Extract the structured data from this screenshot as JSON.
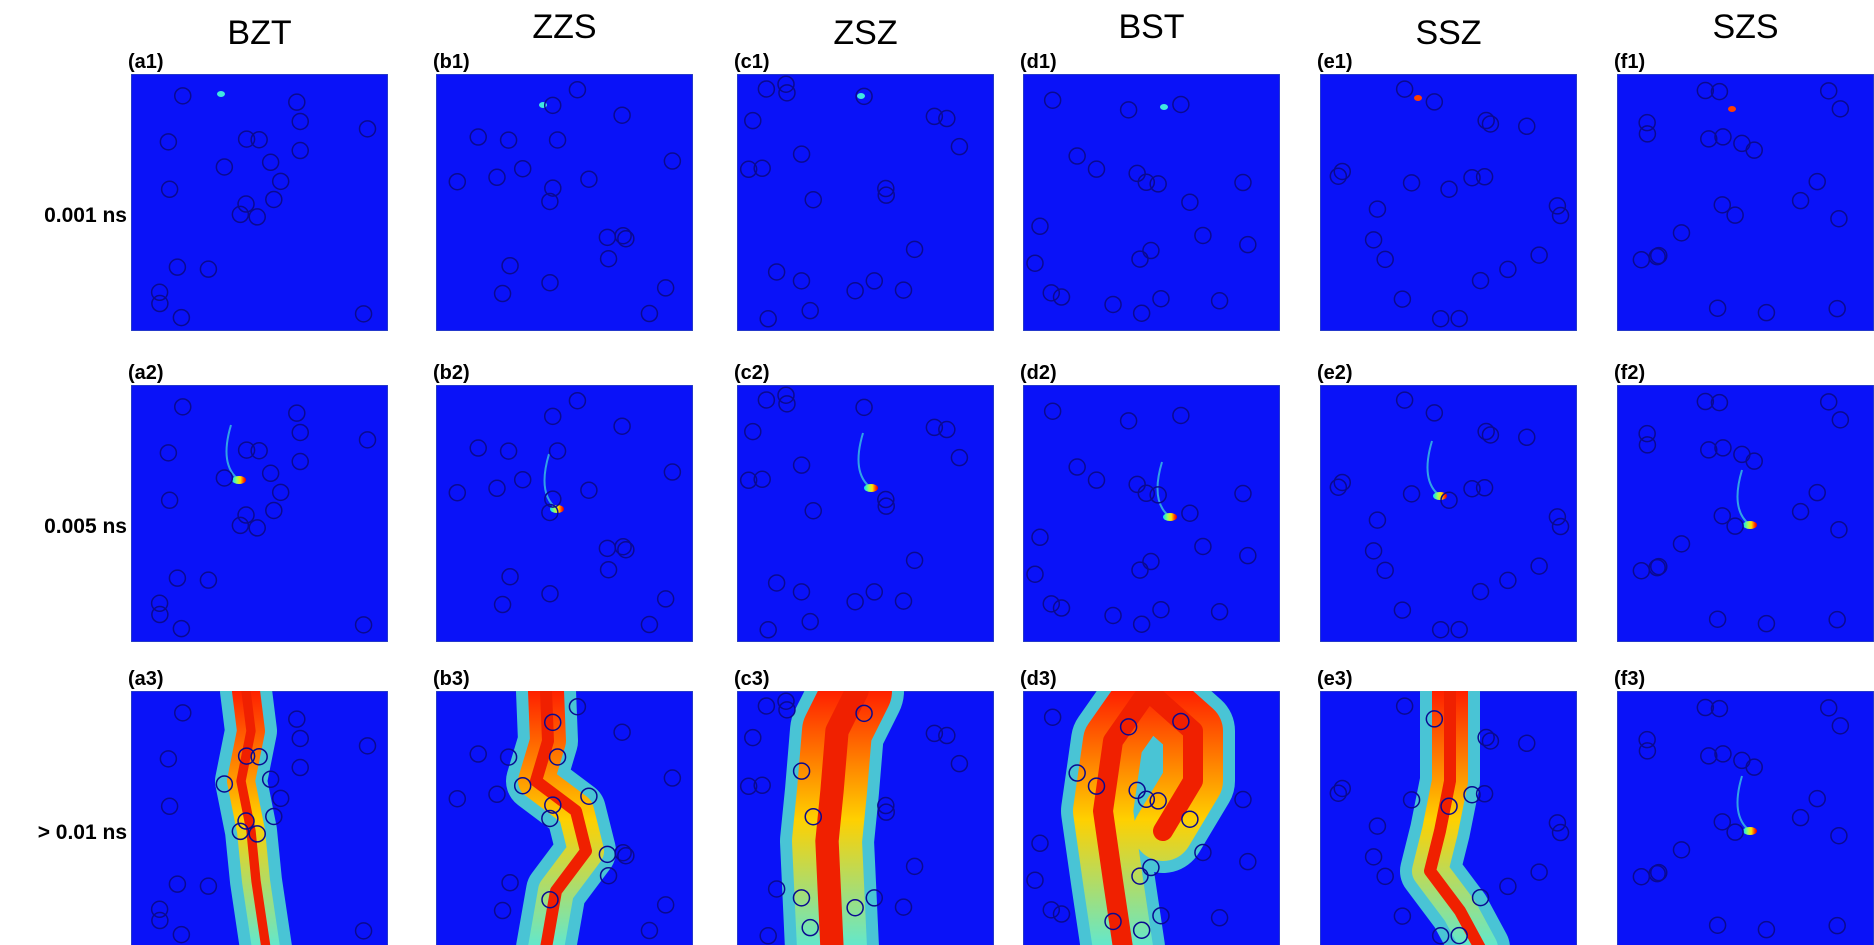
{
  "columns": [
    "BZT",
    "ZZS",
    "ZSZ",
    "BST",
    "SSZ",
    "SZS"
  ],
  "rows": [
    "0.001 ns",
    "0.005 ns",
    "> 0.01 ns"
  ],
  "panels": [
    [
      "(a1)",
      "(b1)",
      "(c1)",
      "(d1)",
      "(e1)",
      "(f1)"
    ],
    [
      "(a2)",
      "(b2)",
      "(c2)",
      "(d2)",
      "(e2)",
      "(f2)"
    ],
    [
      "(a3)",
      "(b3)",
      "(c3)",
      "(d3)",
      "(e3)",
      "(f3)"
    ]
  ]
}
